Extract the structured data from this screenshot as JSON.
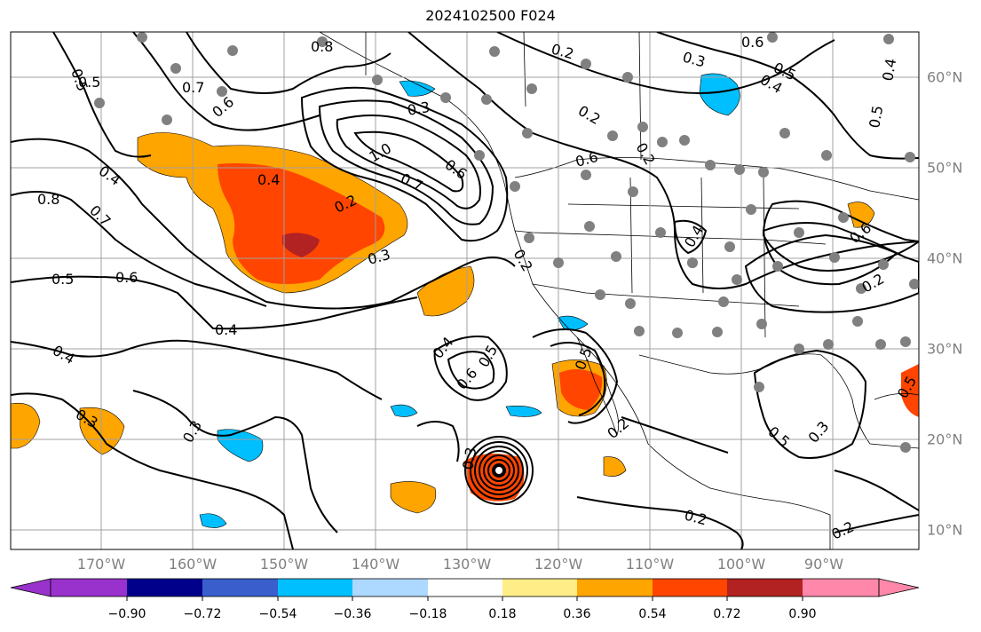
{
  "title": "2024102500 F024",
  "map": {
    "lon_labels": [
      "170°W",
      "160°W",
      "150°W",
      "140°W",
      "130°W",
      "120°W",
      "110°W",
      "100°W",
      "90°W"
    ],
    "lat_labels": [
      "60°N",
      "50°N",
      "40°N",
      "30°N",
      "20°N",
      "10°N"
    ],
    "contour_labels": [
      "0.5",
      "0.7",
      "0.5",
      "0.4",
      "0.8",
      "0.7",
      "0.6",
      "0.5",
      "0.4",
      "0.6",
      "0.8",
      "1.0",
      "0.7",
      "0.6",
      "0.3",
      "0.2",
      "0.4",
      "0.2",
      "0.3",
      "0.5",
      "0.6",
      "0.4",
      "0.4",
      "0.3",
      "0.3",
      "0.4",
      "0.6",
      "0.5",
      "0.2",
      "0.2",
      "0.3",
      "0.2",
      "0.5",
      "0.6",
      "0.3",
      "0.5",
      "0.4",
      "0.6",
      "0.2",
      "0.4",
      "0.5",
      "0.2",
      "0.2",
      "0.2",
      "0.3",
      "0.5"
    ],
    "colors": {
      "land_border": "#000000",
      "grid": "#a0a0a0",
      "station_dot": "#808080"
    }
  },
  "colorbar": {
    "ticks": [
      "−0.90",
      "−0.72",
      "−0.54",
      "−0.36",
      "−0.18",
      "0.18",
      "0.36",
      "0.54",
      "0.72",
      "0.90"
    ],
    "bins": [
      "#9932cc",
      "#00008b",
      "#3a5fcd",
      "#00bfff",
      "#add8ff",
      "#ffffff",
      "#ffee88",
      "#ffa500",
      "#ff4500",
      "#b22222",
      "#ff88aa"
    ]
  }
}
